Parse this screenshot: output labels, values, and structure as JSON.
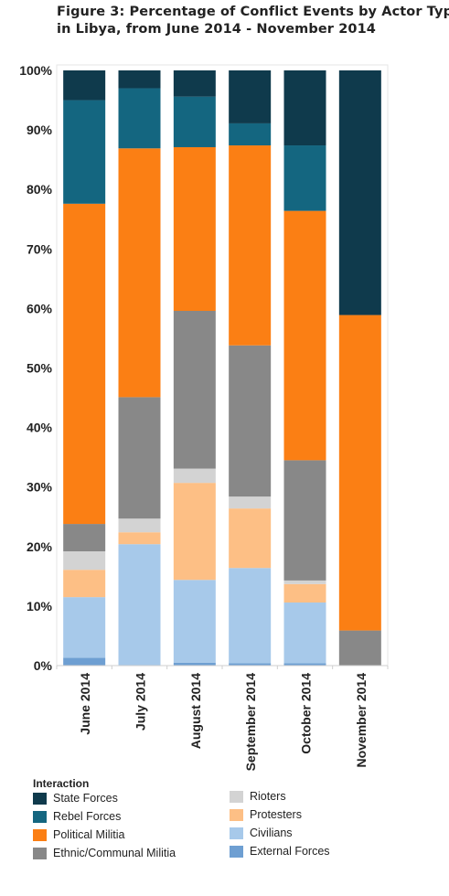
{
  "title_lines": [
    "Figure 3: Percentage of Conflict Events by Actor Type,",
    "in Libya, from June 2014 - November 2014"
  ],
  "colors": {
    "State Forces": "#0f3a4c",
    "Rebel Forces": "#146680",
    "Political Militia": "#fb7f14",
    "Ethnic/Communal Militia": "#888888",
    "Rioters": "#d3d3d3",
    "Protesters": "#fdbf85",
    "Civilians": "#a7c9ea",
    "External Forces": "#6e9fd2"
  },
  "chart_data": {
    "type": "bar",
    "stacked": true,
    "ylim": [
      0,
      100
    ],
    "y_ticks": [
      "0%",
      "10%",
      "20%",
      "30%",
      "40%",
      "50%",
      "60%",
      "70%",
      "80%",
      "90%",
      "100%"
    ],
    "categories": [
      "June 2014",
      "July 2014",
      "August 2014",
      "September 2014",
      "October 2014",
      "November 2014"
    ],
    "legend_title": "Interaction",
    "series": [
      {
        "name": "External Forces",
        "values": [
          1.3,
          0,
          0.5,
          0.4,
          0.4,
          0
        ]
      },
      {
        "name": "Civilians",
        "values": [
          10.2,
          20.4,
          13.9,
          16.0,
          10.2,
          0
        ]
      },
      {
        "name": "Protesters",
        "values": [
          4.6,
          2.0,
          16.3,
          10.0,
          3.1,
          0
        ]
      },
      {
        "name": "Rioters",
        "values": [
          3.1,
          2.3,
          2.4,
          2.0,
          0.6,
          0
        ]
      },
      {
        "name": "Ethnic/Communal Militia",
        "values": [
          4.6,
          20.4,
          26.5,
          25.4,
          20.2,
          5.9
        ]
      },
      {
        "name": "Political Militia",
        "values": [
          53.8,
          41.8,
          27.5,
          33.6,
          41.9,
          53.0
        ]
      },
      {
        "name": "Rebel Forces",
        "values": [
          17.4,
          10.1,
          8.5,
          3.7,
          11.0,
          0
        ]
      },
      {
        "name": "State Forces",
        "values": [
          5.0,
          3.0,
          4.4,
          8.9,
          12.6,
          41.1
        ]
      }
    ]
  },
  "legend": {
    "left": [
      "State Forces",
      "Rebel Forces",
      "Political Militia",
      "Ethnic/Communal Militia"
    ],
    "right": [
      "Rioters",
      "Protesters",
      "Civilians",
      "External Forces"
    ]
  }
}
